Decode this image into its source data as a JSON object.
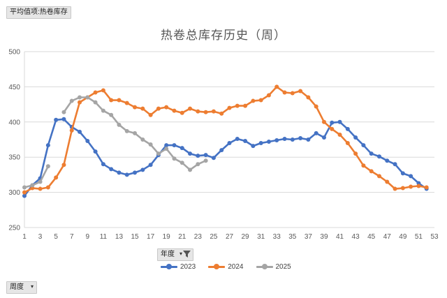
{
  "pivot": {
    "value_field": "平均值项:热卷库存",
    "legend_field": "年度",
    "axis_field": "周度"
  },
  "icons": {
    "dropdown": "dropdown-arrow-icon",
    "filter": "filter-icon"
  },
  "chart_data": {
    "type": "line",
    "title": "热卷总库存历史（周）",
    "ylim": [
      250,
      500
    ],
    "yticks": [
      250,
      300,
      350,
      400,
      450,
      500
    ],
    "xlim": [
      1,
      53
    ],
    "xticks": [
      1,
      3,
      5,
      7,
      9,
      11,
      13,
      15,
      17,
      19,
      21,
      23,
      25,
      27,
      29,
      31,
      33,
      35,
      37,
      39,
      41,
      43,
      45,
      47,
      49,
      51,
      53
    ],
    "grid": true,
    "legend_position": "bottom",
    "series": [
      {
        "name": "2023",
        "color": "#4472c4",
        "x": [
          1,
          2,
          3,
          4,
          5,
          6,
          7,
          8,
          9,
          10,
          11,
          12,
          13,
          14,
          15,
          16,
          17,
          18,
          19,
          20,
          21,
          22,
          23,
          24,
          25,
          26,
          27,
          28,
          29,
          30,
          31,
          32,
          33,
          34,
          35,
          36,
          37,
          38,
          39,
          40,
          41,
          42,
          43,
          44,
          45,
          46,
          47,
          48,
          49,
          50,
          51,
          52
        ],
        "values": [
          295,
          310,
          320,
          367,
          403,
          404,
          393,
          386,
          373,
          358,
          340,
          333,
          328,
          325,
          328,
          332,
          339,
          353,
          367,
          367,
          363,
          355,
          352,
          353,
          349,
          360,
          370,
          376,
          373,
          366,
          370,
          372,
          374,
          376,
          375,
          377,
          375,
          384,
          378,
          399,
          400,
          390,
          378,
          367,
          355,
          351,
          345,
          340,
          327,
          323,
          313,
          305
        ]
      },
      {
        "name": "2024",
        "color": "#ed7d31",
        "x": [
          1,
          2,
          3,
          4,
          5,
          6,
          7,
          8,
          9,
          10,
          11,
          12,
          13,
          14,
          15,
          16,
          17,
          18,
          19,
          20,
          21,
          22,
          23,
          24,
          25,
          26,
          27,
          28,
          29,
          30,
          31,
          32,
          33,
          34,
          35,
          36,
          37,
          38,
          39,
          40,
          41,
          42,
          43,
          44,
          45,
          46,
          47,
          48,
          49,
          50,
          51,
          52
        ],
        "values": [
          300,
          306,
          305,
          307,
          321,
          339,
          388,
          428,
          435,
          442,
          445,
          431,
          431,
          427,
          421,
          419,
          410,
          419,
          421,
          416,
          413,
          419,
          415,
          414,
          415,
          412,
          420,
          423,
          423,
          430,
          431,
          438,
          450,
          442,
          441,
          444,
          435,
          422,
          400,
          390,
          382,
          370,
          355,
          338,
          330,
          323,
          315,
          305,
          306,
          308,
          309,
          307
        ]
      },
      {
        "name": "2025",
        "color": "#a5a5a5",
        "x": [
          1,
          2,
          3,
          4,
          5,
          6,
          7,
          8,
          9,
          10,
          11,
          12,
          13,
          14,
          15,
          16,
          17,
          18,
          19,
          20,
          21,
          22,
          23,
          24
        ],
        "values": [
          307,
          310,
          315,
          337,
          null,
          414,
          430,
          435,
          435,
          428,
          416,
          410,
          396,
          387,
          384,
          375,
          368,
          355,
          362,
          348,
          342,
          332,
          340,
          345
        ]
      }
    ]
  }
}
